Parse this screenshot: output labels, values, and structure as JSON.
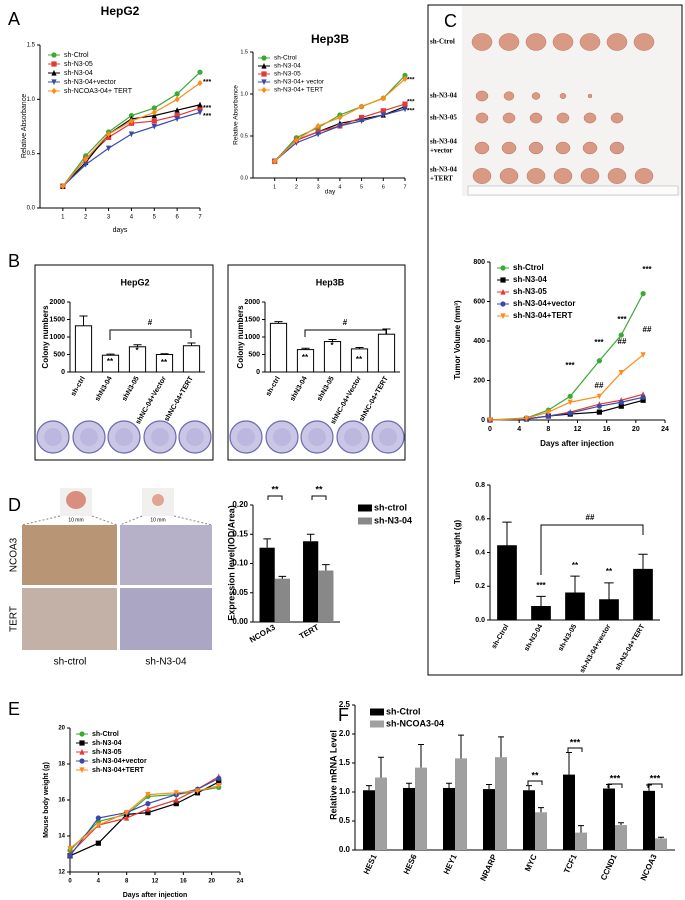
{
  "panel_labels": [
    "A",
    "B",
    "C",
    "D",
    "E",
    "F"
  ],
  "tumor_image": {
    "row_labels": [
      [
        "sh-Ctrol"
      ],
      [
        "sh-N3-04"
      ],
      [
        "sh-N3-05"
      ],
      [
        "sh-N3-04",
        "+vector"
      ],
      [
        "sh-N3-04",
        "+TERT"
      ]
    ]
  },
  "histology": {
    "scale_label": "10 mm",
    "row_labels": [
      "NCOA3",
      "TERT"
    ],
    "col_labels": [
      "sh-ctrol",
      "sh-N3-04"
    ]
  },
  "chart_data": [
    {
      "type": "line",
      "title": "HepG2",
      "x": [
        1,
        2,
        3,
        4,
        5,
        6,
        7
      ],
      "xlim": [
        0,
        7
      ],
      "xticks": [
        1,
        2,
        3,
        4,
        5,
        6,
        7
      ],
      "xlabel": "days",
      "ylabel": "Relative Absorbance",
      "ylim": [
        0,
        1.5
      ],
      "yticks": [
        {
          "value": 0,
          "label": "0.0"
        },
        0.5,
        {
          "value": 1,
          "label": "1.0"
        },
        1.5
      ],
      "series": [
        {
          "name": "sh-Ctrol",
          "color": "#3aaa35",
          "marker": "o",
          "values": [
            0.2,
            0.48,
            0.7,
            0.85,
            0.92,
            1.05,
            1.25
          ]
        },
        {
          "name": "sh-N3-05",
          "color": "#e53935",
          "marker": "s",
          "values": [
            0.2,
            0.45,
            0.65,
            0.78,
            0.8,
            0.85,
            0.92
          ]
        },
        {
          "name": "sh-N3-04",
          "color": "#000000",
          "marker": "^",
          "values": [
            0.2,
            0.42,
            0.68,
            0.82,
            0.85,
            0.9,
            0.95
          ]
        },
        {
          "name": "sh-N3-04+vector",
          "color": "#3949ab",
          "marker": "v",
          "values": [
            0.2,
            0.4,
            0.55,
            0.68,
            0.75,
            0.82,
            0.88
          ]
        },
        {
          "name": "sh-NCOA3-04+ TERT",
          "color": "#ff8c1a",
          "marker": "d",
          "values": [
            0.2,
            0.45,
            0.68,
            0.8,
            0.88,
            1.0,
            1.15
          ]
        }
      ],
      "annotations": [
        "***",
        "***",
        "***"
      ]
    },
    {
      "type": "line",
      "title": "Hep3B",
      "x": [
        1,
        2,
        3,
        4,
        5,
        6,
        7
      ],
      "xlim": [
        0,
        7
      ],
      "xticks": [
        1,
        2,
        3,
        4,
        5,
        6,
        7
      ],
      "xlabel": "day",
      "ylabel": "Relative Absorbance",
      "ylim": [
        0,
        1.5
      ],
      "yticks": [
        {
          "value": 0,
          "label": "0.0"
        },
        0.5,
        {
          "value": 1,
          "label": "1.0"
        },
        1.5
      ],
      "series": [
        {
          "name": "sh-Ctrol",
          "color": "#3aaa35",
          "marker": "o",
          "values": [
            0.2,
            0.48,
            0.6,
            0.75,
            0.85,
            0.95,
            1.22
          ]
        },
        {
          "name": "sh-N3-04",
          "color": "#000000",
          "marker": "^",
          "values": [
            0.2,
            0.45,
            0.55,
            0.65,
            0.7,
            0.75,
            0.85
          ]
        },
        {
          "name": "sh-N3-05",
          "color": "#e53935",
          "marker": "s",
          "values": [
            0.2,
            0.45,
            0.55,
            0.62,
            0.72,
            0.8,
            0.88
          ]
        },
        {
          "name": "sh-N3-04+ vector",
          "color": "#3949ab",
          "marker": "v",
          "values": [
            0.2,
            0.42,
            0.52,
            0.62,
            0.68,
            0.75,
            0.82
          ]
        },
        {
          "name": "sh-N3-04+ TERT",
          "color": "#ff8c1a",
          "marker": "d",
          "values": [
            0.2,
            0.45,
            0.62,
            0.72,
            0.85,
            0.95,
            1.18
          ]
        }
      ],
      "annotations": [
        "***",
        "***",
        "***"
      ]
    },
    {
      "type": "bar",
      "title": "HepG2",
      "categories": [
        "sh-ctrl",
        "shN3-04",
        "shN3-05",
        "shNC-04+Vector",
        "shNC-04+TERT"
      ],
      "values": [
        1320,
        480,
        720,
        500,
        750
      ],
      "errors": [
        280,
        30,
        60,
        20,
        80
      ],
      "color": "#ffffff",
      "edgecolor": "#000000",
      "ylabel": "Colony numbers",
      "ylim": [
        0,
        2000
      ],
      "yticks": [
        0,
        500,
        1000,
        1500,
        2000
      ],
      "annotations": [
        "**",
        "*",
        "**",
        "#"
      ]
    },
    {
      "type": "bar",
      "title": "Hep3B",
      "categories": [
        "sh-ctrl",
        "shN3-04",
        "shN3-05",
        "shNC-04+Vector",
        "shNC-04+TERT"
      ],
      "values": [
        1390,
        640,
        870,
        660,
        1080
      ],
      "errors": [
        50,
        40,
        60,
        40,
        150
      ],
      "color": "#ffffff",
      "edgecolor": "#000000",
      "ylabel": "Colony numbers",
      "ylim": [
        0,
        2000
      ],
      "yticks": [
        0,
        500,
        1000,
        1500,
        2000
      ],
      "annotations": [
        "**",
        "*",
        "**",
        "#"
      ]
    },
    {
      "type": "line",
      "x": [
        0,
        5,
        8,
        11,
        15,
        18,
        21
      ],
      "xlim": [
        0,
        24
      ],
      "xticks": [
        0,
        4,
        8,
        12,
        16,
        20,
        24
      ],
      "xlabel": "Days after injection",
      "ylabel": "Tumor Volume (mm³)",
      "ylim": [
        0,
        800
      ],
      "yticks": [
        0,
        200,
        400,
        600,
        800
      ],
      "series": [
        {
          "name": "sh-Ctrol",
          "color": "#3aaa35",
          "marker": "o",
          "values": [
            0,
            10,
            50,
            120,
            300,
            430,
            640
          ]
        },
        {
          "name": "sh-N3-04",
          "color": "#000000",
          "marker": "s",
          "values": [
            0,
            5,
            20,
            30,
            40,
            70,
            100
          ]
        },
        {
          "name": "sh-N3-05",
          "color": "#e53935",
          "marker": "^",
          "values": [
            0,
            5,
            20,
            40,
            80,
            100,
            130
          ]
        },
        {
          "name": "sh-N3-04+vector",
          "color": "#3949ab",
          "marker": "o",
          "values": [
            0,
            5,
            20,
            35,
            70,
            90,
            115
          ]
        },
        {
          "name": "sh-N3-04+TERT",
          "color": "#ff8c1a",
          "marker": "v",
          "values": [
            0,
            8,
            40,
            90,
            120,
            240,
            330
          ]
        }
      ],
      "annotations": [
        "***",
        "***",
        "***",
        "***",
        "##",
        "##",
        "##"
      ]
    },
    {
      "type": "bar",
      "categories": [
        "sh-Ctrol",
        "sh-N3-04",
        "sh-N3-05",
        "sh-N3-04+vector",
        "sh-N3-04+TERT"
      ],
      "values": [
        0.44,
        0.08,
        0.16,
        0.12,
        0.3
      ],
      "errors": [
        0.14,
        0.06,
        0.1,
        0.1,
        0.09
      ],
      "color": "#000000",
      "edgecolor": "#000000",
      "ylabel": "Tumor weight (g)",
      "ylim": [
        0,
        0.8
      ],
      "yticks": [
        {
          "value": 0,
          "label": "0.0"
        },
        0.2,
        0.4,
        0.6,
        0.8
      ],
      "annotations": [
        "***",
        "**",
        "**",
        "##"
      ]
    },
    {
      "type": "grouped_bar",
      "categories": [
        "NCOA3",
        "TERT"
      ],
      "ylabel": "Expression level(IOD/Area)",
      "ylim": [
        0,
        0.2
      ],
      "yticks": [
        {
          "value": 0,
          "label": "0.00"
        },
        0.05,
        {
          "value": 0.1,
          "label": "0.10"
        },
        0.15,
        {
          "value": 0.2,
          "label": "0.20"
        }
      ],
      "series": [
        {
          "name": "sh-ctrol",
          "color": "#000000",
          "values": [
            0.127,
            0.138
          ],
          "errors": [
            0.015,
            0.012
          ]
        },
        {
          "name": "sh-N3-04",
          "color": "#888888",
          "values": [
            0.074,
            0.088
          ],
          "errors": [
            0.004,
            0.01
          ]
        }
      ],
      "annotations": [
        "**",
        "**"
      ]
    },
    {
      "type": "line",
      "x": [
        0,
        4,
        8,
        11,
        15,
        18,
        21
      ],
      "xlim": [
        0,
        24
      ],
      "xticks": [
        0,
        4,
        8,
        12,
        16,
        20,
        24
      ],
      "xlabel": "Days after injection",
      "ylabel": "Mouse body weight (g)",
      "ylim": [
        12,
        20
      ],
      "yticks": [
        12,
        14,
        16,
        18,
        20
      ],
      "series": [
        {
          "name": "sh-Ctrol",
          "color": "#3aaa35",
          "marker": "o",
          "values": [
            13.2,
            14.8,
            15.2,
            16.2,
            16.3,
            16.5,
            16.7
          ]
        },
        {
          "name": "sh-N3-04",
          "color": "#000000",
          "marker": "s",
          "values": [
            12.9,
            13.6,
            15.2,
            15.3,
            15.8,
            16.4,
            17.0
          ]
        },
        {
          "name": "sh-N3-05",
          "color": "#e53935",
          "marker": "^",
          "values": [
            13.0,
            14.6,
            15.0,
            15.5,
            16.0,
            16.6,
            17.3
          ]
        },
        {
          "name": "sh-N3-04+vector",
          "color": "#3949ab",
          "marker": "o",
          "values": [
            12.9,
            15.0,
            15.3,
            15.8,
            16.3,
            16.6,
            17.2
          ]
        },
        {
          "name": "sh-N3-04+TERT",
          "color": "#ff8c1a",
          "marker": "v",
          "values": [
            13.3,
            14.6,
            15.3,
            16.3,
            16.4,
            16.5,
            16.8
          ]
        }
      ]
    },
    {
      "type": "grouped_bar",
      "categories": [
        "HES1",
        "HES6",
        "HEY1",
        "NRARP",
        "MYC",
        "TCF1",
        "CCND1",
        "NCOA3"
      ],
      "ylabel": "Relative mRNA Level",
      "ylim": [
        0,
        2.5
      ],
      "yticks": [
        {
          "value": 0,
          "label": "0.0"
        },
        0.5,
        {
          "value": 1,
          "label": "1.0"
        },
        1.5,
        {
          "value": 2,
          "label": "2.0"
        },
        2.5
      ],
      "series": [
        {
          "name": "sh-Ctrol",
          "color": "#000000",
          "values": [
            1.03,
            1.07,
            1.07,
            1.05,
            1.03,
            1.3,
            1.06,
            1.02
          ],
          "errors": [
            0.08,
            0.08,
            0.08,
            0.08,
            0.08,
            0.38,
            0.07,
            0.1
          ]
        },
        {
          "name": "sh-NCOA3-04",
          "color": "#a0a0a0",
          "values": [
            1.25,
            1.42,
            1.58,
            1.6,
            0.65,
            0.3,
            0.43,
            0.2
          ],
          "errors": [
            0.35,
            0.4,
            0.4,
            0.35,
            0.08,
            0.12,
            0.04,
            0.02
          ]
        }
      ],
      "annotations": [
        "**",
        "***",
        "***",
        "***"
      ]
    }
  ]
}
